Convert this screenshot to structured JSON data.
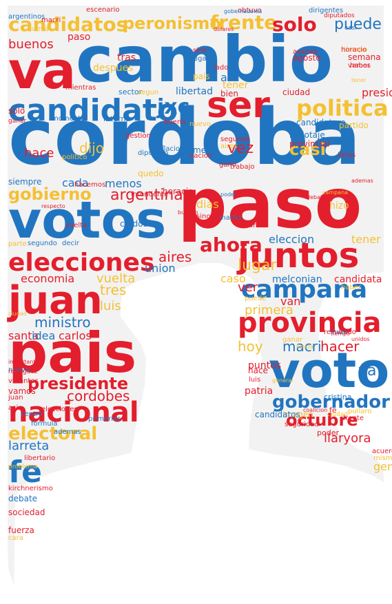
{
  "palette": {
    "red": "#e31e2d",
    "blue": "#2175c0",
    "yellow": "#f4c033",
    "silhouette_fill": "#f2f2f2",
    "background": "#ffffff"
  },
  "words": [
    {
      "text": "cordoba",
      "color": "blue"
    },
    {
      "text": "paso",
      "color": "red"
    },
    {
      "text": "cambio",
      "color": "blue"
    },
    {
      "text": "votos",
      "color": "blue"
    },
    {
      "text": "va",
      "color": "red"
    },
    {
      "text": "pais",
      "color": "red"
    },
    {
      "text": "voto",
      "color": "blue"
    },
    {
      "text": "juntos",
      "color": "red"
    },
    {
      "text": "juan",
      "color": "red"
    },
    {
      "text": "candidato",
      "color": "blue"
    },
    {
      "text": "ser",
      "color": "red"
    },
    {
      "text": "provincia",
      "color": "red"
    },
    {
      "text": "nacional",
      "color": "red"
    },
    {
      "text": "elecciones",
      "color": "red"
    },
    {
      "text": "campana",
      "color": "blue"
    },
    {
      "text": "candidatos",
      "color": "yellow"
    },
    {
      "text": "politica",
      "color": "yellow"
    },
    {
      "text": "gobernador",
      "color": "blue"
    },
    {
      "text": "fe",
      "color": "blue"
    },
    {
      "text": "presidente",
      "color": "red"
    },
    {
      "text": "electoral",
      "color": "yellow"
    },
    {
      "text": "octubre",
      "color": "red"
    },
    {
      "text": "ahora",
      "color": "red"
    },
    {
      "text": "argentina",
      "color": "red"
    },
    {
      "text": "gobierno",
      "color": "yellow"
    },
    {
      "text": "peronismo",
      "color": "yellow"
    },
    {
      "text": "frente",
      "color": "yellow"
    },
    {
      "text": "solo",
      "color": "red"
    },
    {
      "text": "puede",
      "color": "blue"
    },
    {
      "text": "jxc",
      "color": "blue"
    },
    {
      "text": "ministro",
      "color": "blue"
    },
    {
      "text": "hacer",
      "color": "red"
    },
    {
      "text": "hoy",
      "color": "yellow"
    },
    {
      "text": "macri",
      "color": "blue"
    },
    {
      "text": "va",
      "color": "blue"
    },
    {
      "text": "lugar",
      "color": "yellow"
    },
    {
      "text": "vuelta",
      "color": "yellow"
    },
    {
      "text": "aires",
      "color": "red"
    },
    {
      "text": "cordobes",
      "color": "red"
    },
    {
      "text": "llaryora",
      "color": "red"
    },
    {
      "text": "larreta",
      "color": "blue"
    },
    {
      "text": "buenos",
      "color": "red"
    },
    {
      "text": "vez",
      "color": "red"
    },
    {
      "text": "casi",
      "color": "yellow"
    },
    {
      "text": "dijo",
      "color": "yellow"
    },
    {
      "text": "hace",
      "color": "red"
    },
    {
      "text": "tres",
      "color": "yellow"
    },
    {
      "text": "luis",
      "color": "yellow"
    },
    {
      "text": "carlos",
      "color": "red"
    },
    {
      "text": "eleccion",
      "color": "blue"
    },
    {
      "text": "tener",
      "color": "yellow"
    },
    {
      "text": "ver",
      "color": "red"
    },
    {
      "text": "primera",
      "color": "yellow"
    },
    {
      "text": "van",
      "color": "red"
    },
    {
      "text": "melconian",
      "color": "blue"
    },
    {
      "text": "candidata",
      "color": "red"
    },
    {
      "text": "caso",
      "color": "yellow"
    },
    {
      "text": "puntos",
      "color": "red"
    },
    {
      "text": "patria",
      "color": "red"
    },
    {
      "text": "santa",
      "color": "red"
    },
    {
      "text": "idea",
      "color": "blue"
    },
    {
      "text": "dias",
      "color": "yellow"
    },
    {
      "text": "hizo",
      "color": "yellow"
    },
    {
      "text": "cada",
      "color": "blue"
    },
    {
      "text": "menos",
      "color": "blue"
    },
    {
      "text": "quedo",
      "color": "yellow"
    },
    {
      "text": "economia",
      "color": "red"
    },
    {
      "text": "union",
      "color": "blue"
    },
    {
      "text": "libertad",
      "color": "blue"
    },
    {
      "text": "sector",
      "color": "blue"
    },
    {
      "text": "asi",
      "color": "blue"
    },
    {
      "text": "sino",
      "color": "red"
    },
    {
      "text": "lugar",
      "color": "blue"
    },
    {
      "text": "pais",
      "color": "yellow"
    },
    {
      "text": "lado",
      "color": "red"
    },
    {
      "text": "tener",
      "color": "yellow"
    },
    {
      "text": "bien",
      "color": "red"
    },
    {
      "text": "paso",
      "color": "red"
    },
    {
      "text": "tras",
      "color": "red"
    },
    {
      "text": "despues",
      "color": "yellow"
    },
    {
      "text": "solo",
      "color": "red"
    },
    {
      "text": "presidencial",
      "color": "red"
    },
    {
      "text": "ciudad",
      "color": "red"
    },
    {
      "text": "candidatura",
      "color": "blue"
    },
    {
      "text": "partido",
      "color": "yellow"
    },
    {
      "text": "momento",
      "color": "blue"
    },
    {
      "text": "interna",
      "color": "blue"
    },
    {
      "text": "buena",
      "color": "red"
    },
    {
      "text": "agosto",
      "color": "red"
    },
    {
      "text": "gano",
      "color": "red"
    },
    {
      "text": "nuevo",
      "color": "yellow"
    },
    {
      "text": "mejor",
      "color": "blue"
    },
    {
      "text": "trabajo",
      "color": "red"
    },
    {
      "text": "horacio",
      "color": "red"
    },
    {
      "text": "sino",
      "color": "red"
    },
    {
      "text": "martin",
      "color": "blue"
    },
    {
      "text": "parte",
      "color": "yellow"
    },
    {
      "text": "segundo",
      "color": "blue"
    },
    {
      "text": "decir",
      "color": "blue"
    },
    {
      "text": "libertario",
      "color": "red"
    },
    {
      "text": "kirchnerismo",
      "color": "red"
    },
    {
      "text": "debate",
      "color": "blue"
    },
    {
      "text": "sociedad",
      "color": "red"
    },
    {
      "text": "fuerza",
      "color": "red"
    },
    {
      "text": "cara",
      "color": "yellow"
    },
    {
      "text": "hace",
      "color": "red"
    },
    {
      "text": "luis",
      "color": "red"
    },
    {
      "text": "haber",
      "color": "yellow"
    },
    {
      "text": "imagen",
      "color": "yellow"
    },
    {
      "text": "seguridad",
      "color": "red"
    },
    {
      "text": "poder",
      "color": "red"
    },
    {
      "text": "acuerdo",
      "color": "red"
    },
    {
      "text": "mismo",
      "color": "yellow"
    },
    {
      "text": "gente",
      "color": "yellow"
    },
    {
      "text": "frente",
      "color": "red"
    },
    {
      "text": "fe",
      "color": "red"
    },
    {
      "text": "ciudad",
      "color": "yellow"
    },
    {
      "text": "pullaro",
      "color": "yellow"
    },
    {
      "text": "cristina",
      "color": "blue"
    },
    {
      "text": "votantes",
      "color": "red"
    },
    {
      "text": "vamos",
      "color": "red"
    },
    {
      "text": "juan",
      "color": "red"
    },
    {
      "text": "asi",
      "color": "red"
    },
    {
      "text": "centro",
      "color": "blue"
    },
    {
      "text": "formula",
      "color": "blue"
    },
    {
      "text": "ademas",
      "color": "blue"
    },
    {
      "text": "primarias",
      "color": "blue"
    },
    {
      "text": "politico",
      "color": "yellow"
    },
    {
      "text": "diputado",
      "color": "blue"
    },
    {
      "text": "nacion",
      "color": "red"
    },
    {
      "text": "gestion",
      "color": "red"
    },
    {
      "text": "inflacion",
      "color": "blue"
    },
    {
      "text": "mauricio",
      "color": "red"
    },
    {
      "text": "tiempo",
      "color": "yellow"
    },
    {
      "text": "semana",
      "color": "red"
    },
    {
      "text": "haber",
      "color": "red"
    },
    {
      "text": "nueva",
      "color": "yellow"
    },
    {
      "text": "obtuvo",
      "color": "red"
    },
    {
      "text": "intendente",
      "color": "red"
    },
    {
      "text": "vamos",
      "color": "red"
    },
    {
      "text": "avanza",
      "color": "red"
    },
    {
      "text": "mientras",
      "color": "red"
    },
    {
      "text": "segun",
      "color": "yellow"
    },
    {
      "text": "ganar",
      "color": "red"
    },
    {
      "text": "escenario",
      "color": "red"
    },
    {
      "text": "siempre",
      "color": "blue"
    },
    {
      "text": "hacemos",
      "color": "red"
    },
    {
      "text": "cordoba",
      "color": "blue"
    },
    {
      "text": "vuelta",
      "color": "red"
    },
    {
      "text": "segunda",
      "color": "red"
    },
    {
      "text": "aires",
      "color": "yellow"
    },
    {
      "text": "puede",
      "color": "yellow"
    },
    {
      "text": "nuevo",
      "color": "blue"
    },
    {
      "text": "argentinos",
      "color": "blue"
    },
    {
      "text": "provincial",
      "color": "red"
    },
    {
      "text": "ballotaje",
      "color": "blue"
    },
    {
      "text": "candidatos",
      "color": "blue"
    },
    {
      "text": "ganar",
      "color": "yellow"
    },
    {
      "text": "campana",
      "color": "yellow"
    },
    {
      "text": "poder",
      "color": "blue"
    },
    {
      "text": "macri",
      "color": "red"
    },
    {
      "text": "dirigentes",
      "color": "blue"
    },
    {
      "text": "diputados",
      "color": "red"
    },
    {
      "text": "casi",
      "color": "blue"
    },
    {
      "text": "elecciones",
      "color": "red"
    },
    {
      "text": "gobernadores",
      "color": "blue"
    },
    {
      "text": "importante",
      "color": "red"
    },
    {
      "text": "respecto",
      "color": "red"
    },
    {
      "text": "rodriguez",
      "color": "red"
    },
    {
      "text": "bullrich",
      "color": "red"
    },
    {
      "text": "ademas",
      "color": "red"
    },
    {
      "text": "debates",
      "color": "red"
    },
    {
      "text": "tiempo",
      "color": "red"
    },
    {
      "text": "problema",
      "color": "yellow"
    },
    {
      "text": "unidos",
      "color": "red"
    },
    {
      "text": "fuerza",
      "color": "yellow"
    },
    {
      "text": "general",
      "color": "yellow"
    },
    {
      "text": "ciudad",
      "color": "yellow"
    },
    {
      "text": "dolares",
      "color": "red"
    },
    {
      "text": "coalicion",
      "color": "red"
    },
    {
      "text": "listas",
      "color": "red"
    },
    {
      "text": "resultado",
      "color": "red"
    },
    {
      "text": "horacio",
      "color": "red"
    },
    {
      "text": "tener",
      "color": "yellow"
    },
    {
      "text": "frente",
      "color": "blue"
    },
    {
      "text": "tambien",
      "color": "blue"
    },
    {
      "text": "interna",
      "color": "yellow"
    },
    {
      "text": "proceso",
      "color": "yellow"
    },
    {
      "text": "votacion",
      "color": "yellow"
    },
    {
      "text": "cordobesa",
      "color": "yellow"
    },
    {
      "text": "gobierno",
      "color": "yellow"
    }
  ]
}
